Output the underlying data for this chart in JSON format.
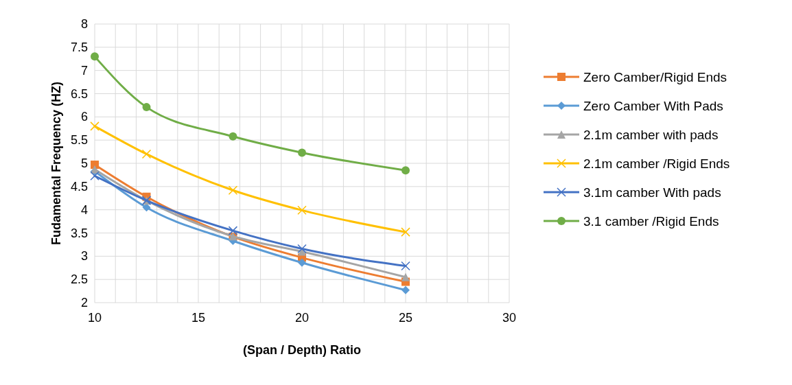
{
  "chart_data": {
    "type": "line",
    "xlabel": "(Span / Depth) Ratio",
    "ylabel": "Fudamental Frequency (HZ)",
    "x": [
      10,
      12.5,
      16.67,
      20,
      25
    ],
    "xlim": [
      10,
      30
    ],
    "xticks": [
      10,
      {
        "value": 11,
        "label": null
      },
      {
        "value": 12,
        "label": null
      },
      {
        "value": 13,
        "label": null
      },
      {
        "value": 14,
        "label": null
      },
      15,
      {
        "value": 16,
        "label": null
      },
      {
        "value": 17,
        "label": null
      },
      {
        "value": 18,
        "label": null
      },
      {
        "value": 19,
        "label": null
      },
      20,
      {
        "value": 21,
        "label": null
      },
      {
        "value": 22,
        "label": null
      },
      {
        "value": 23,
        "label": null
      },
      {
        "value": 24,
        "label": null
      },
      25,
      {
        "value": 26,
        "label": null
      },
      {
        "value": 27,
        "label": null
      },
      {
        "value": 28,
        "label": null
      },
      {
        "value": 29,
        "label": null
      },
      30
    ],
    "ylim": [
      2,
      8
    ],
    "yticks": [
      2,
      2.5,
      3,
      3.5,
      4,
      4.5,
      5,
      5.5,
      6,
      6.5,
      7,
      7.5,
      8
    ],
    "grid": true,
    "legend": "right",
    "series": [
      {
        "name": "Zero Camber/Rigid Ends",
        "color": "#ed7d31",
        "marker": "square",
        "values": [
          4.97,
          4.28,
          3.42,
          2.97,
          2.45
        ]
      },
      {
        "name": "Zero Camber With Pads",
        "color": "#5b9bd5",
        "marker": "diamond",
        "values": [
          4.83,
          4.05,
          3.33,
          2.86,
          2.27
        ]
      },
      {
        "name": "2.1m camber with pads",
        "color": "#a5a5a5",
        "marker": "triangle",
        "values": [
          4.87,
          4.2,
          3.43,
          3.1,
          2.55
        ]
      },
      {
        "name": "2.1m camber /Rigid Ends",
        "color": "#ffc000",
        "marker": "cross",
        "values": [
          5.8,
          5.2,
          4.42,
          3.99,
          3.52
        ]
      },
      {
        "name": "3.1m camber With pads",
        "color": "#4472c4",
        "marker": "cross",
        "values": [
          4.73,
          4.2,
          3.55,
          3.16,
          2.79
        ]
      },
      {
        "name": "3.1 camber /Rigid Ends",
        "color": "#70ad47",
        "marker": "circle",
        "values": [
          7.3,
          6.21,
          5.58,
          5.23,
          4.85
        ]
      }
    ]
  }
}
